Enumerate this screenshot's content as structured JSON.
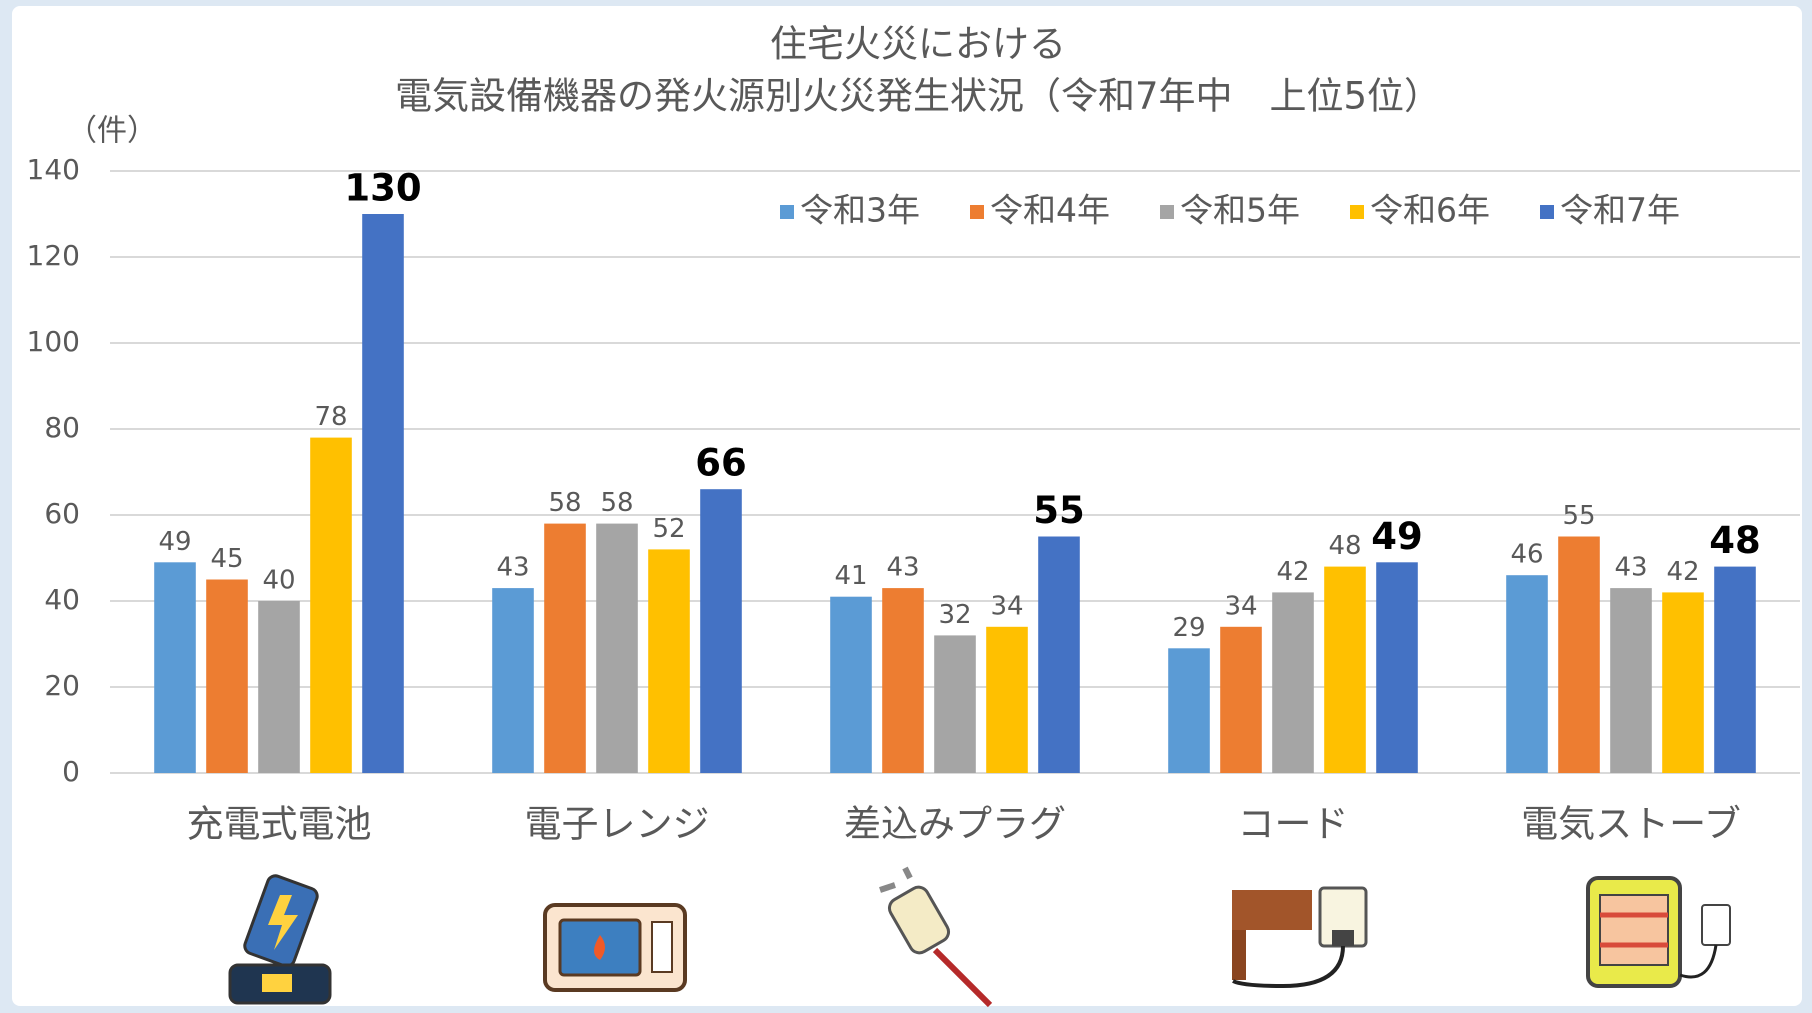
{
  "chart_data": {
    "type": "bar",
    "title": "住宅火災における",
    "subtitle": "電気設備機器の発火源別火災発生状況（令和7年中　上位5位）",
    "ylabel": "（件）",
    "categories": [
      "充電式電池",
      "電子レンジ",
      "差込みプラグ",
      "コード",
      "電気ストーブ"
    ],
    "series": [
      {
        "name": "令和3年",
        "color": "#5b9bd5",
        "values": [
          49,
          43,
          41,
          29,
          46
        ]
      },
      {
        "name": "令和4年",
        "color": "#ed7d31",
        "values": [
          45,
          58,
          43,
          34,
          55
        ]
      },
      {
        "name": "令和5年",
        "color": "#a5a5a5",
        "values": [
          40,
          58,
          32,
          42,
          43
        ]
      },
      {
        "name": "令和6年",
        "color": "#ffc000",
        "values": [
          78,
          52,
          34,
          48,
          42
        ]
      },
      {
        "name": "令和7年",
        "color": "#4472c4",
        "values": [
          130,
          66,
          55,
          49,
          48
        ],
        "label_bold": true
      }
    ],
    "ylim": [
      0,
      140
    ],
    "yticks": [
      0,
      20,
      40,
      60,
      80,
      100,
      120,
      140
    ],
    "grid": true,
    "legend": "top-right"
  }
}
